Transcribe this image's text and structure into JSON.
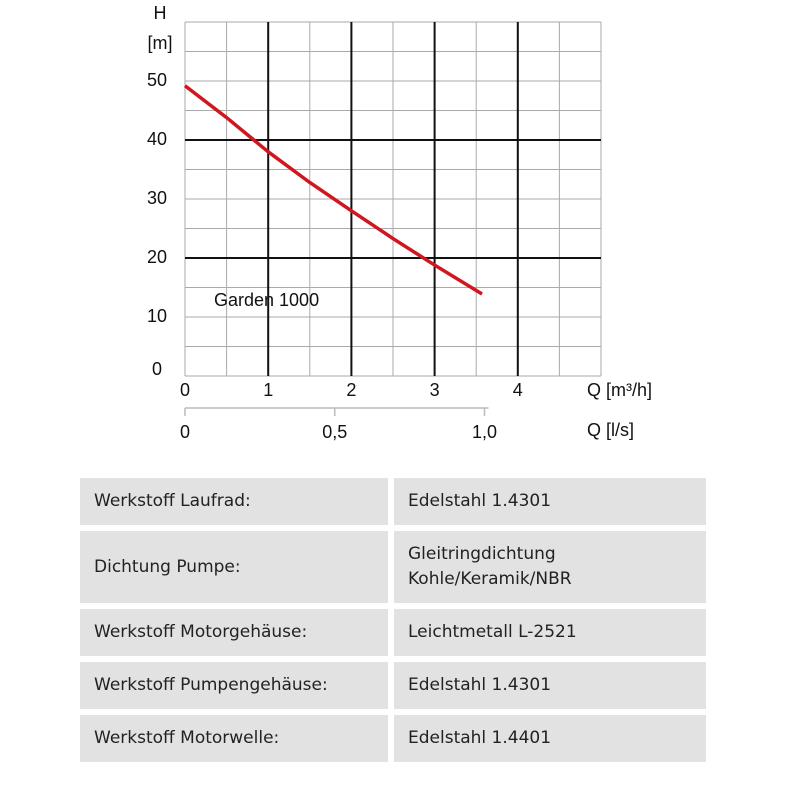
{
  "chart_data": {
    "type": "line",
    "ylabel": "H",
    "yunit": "[m]",
    "xlabel": "Q [m³/h]",
    "x2label": "Q [l/s]",
    "x": [
      0,
      0.5,
      1,
      1.5,
      2,
      2.5,
      3,
      3.57
    ],
    "series": [
      {
        "name": "Garden 1000",
        "color": "#d0161e",
        "values": [
          49.2,
          43.8,
          38,
          32.8,
          28,
          23.3,
          18.8,
          13.9
        ]
      }
    ],
    "xlim": [
      0,
      5
    ],
    "xticks": [
      0,
      1,
      2,
      3,
      4
    ],
    "ylim": [
      0,
      60
    ],
    "yticks": [
      0,
      10,
      20,
      30,
      40,
      50
    ],
    "x2lim": [
      0,
      1.3889
    ],
    "x2ticks": [
      0,
      {
        "value": 0.5,
        "label": "0,5"
      },
      {
        "value": 1,
        "label": "1,0"
      }
    ],
    "xgrid": [
      0,
      0.5,
      1,
      1.5,
      2,
      2.5,
      3,
      3.5,
      4,
      4.5,
      5
    ],
    "xgrid_major": [
      1,
      2,
      3,
      4
    ],
    "ygrid": [
      0,
      5,
      10,
      15,
      20,
      25,
      30,
      35,
      40,
      45,
      50,
      55,
      60
    ],
    "ygrid_major": [
      20,
      40
    ],
    "grid": true
  },
  "table": {
    "rows": [
      [
        "Werkstoff Laufrad:",
        "Edelstahl 1.4301"
      ],
      [
        "Dichtung Pumpe:",
        "Gleitringdichtung\nKohle/Keramik/NBR"
      ],
      [
        "Werkstoff Motorgehäuse:",
        "Leichtmetall L-2521"
      ],
      [
        "Werkstoff Pumpengehäuse:",
        "Edelstahl 1.4301"
      ],
      [
        "Werkstoff Motorwelle:",
        "Edelstahl 1.4401"
      ]
    ]
  }
}
